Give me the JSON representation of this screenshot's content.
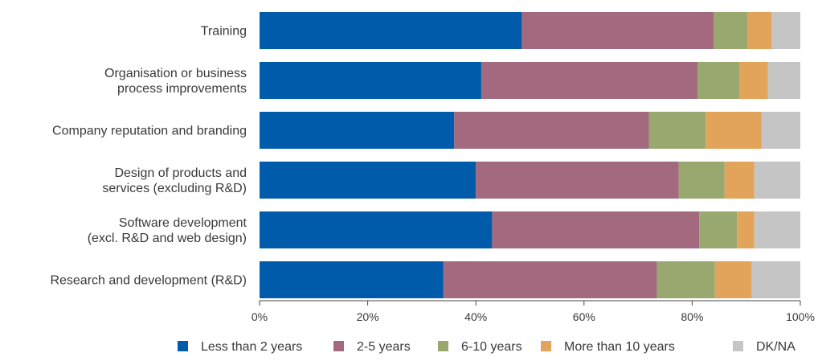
{
  "chart_data": {
    "type": "bar",
    "orientation": "horizontal",
    "stacked": true,
    "title": "",
    "xlabel": "",
    "ylabel": "",
    "xlim": [
      0,
      100
    ],
    "grid": false,
    "legend_position": "bottom",
    "categories": [
      {
        "lines": [
          "Training"
        ]
      },
      {
        "lines": [
          "Organisation or business",
          "process improvements"
        ]
      },
      {
        "lines": [
          "Company reputation and branding"
        ]
      },
      {
        "lines": [
          "Design of products and",
          "services (excluding R&D)"
        ]
      },
      {
        "lines": [
          "Software development",
          "(excl. R&D and web design)"
        ]
      },
      {
        "lines": [
          "Research and development (R&D)"
        ]
      }
    ],
    "ticks": [
      "0%",
      "20%",
      "40%",
      "60%",
      "80%",
      "100%"
    ],
    "tick_values": [
      0,
      20,
      40,
      60,
      80,
      100
    ],
    "series": [
      {
        "name": "Less than 2 years",
        "color": "#005cab",
        "values": [
          48.5,
          41.0,
          36.0,
          40.0,
          43.0,
          34.0
        ]
      },
      {
        "name": "2-5 years",
        "color": "#a3697f",
        "values": [
          35.5,
          40.0,
          36.0,
          37.5,
          38.3,
          39.5
        ]
      },
      {
        "name": "6-10 years",
        "color": "#98a86f",
        "values": [
          6.3,
          7.7,
          10.5,
          8.5,
          7.0,
          10.7
        ]
      },
      {
        "name": "More than 10 years",
        "color": "#e1a45a",
        "values": [
          4.4,
          5.3,
          10.3,
          5.5,
          3.2,
          6.8
        ]
      },
      {
        "name": "DK/NA",
        "color": "#c5c5c5",
        "values": [
          5.3,
          6.0,
          7.2,
          8.5,
          8.5,
          9.0
        ]
      }
    ]
  }
}
